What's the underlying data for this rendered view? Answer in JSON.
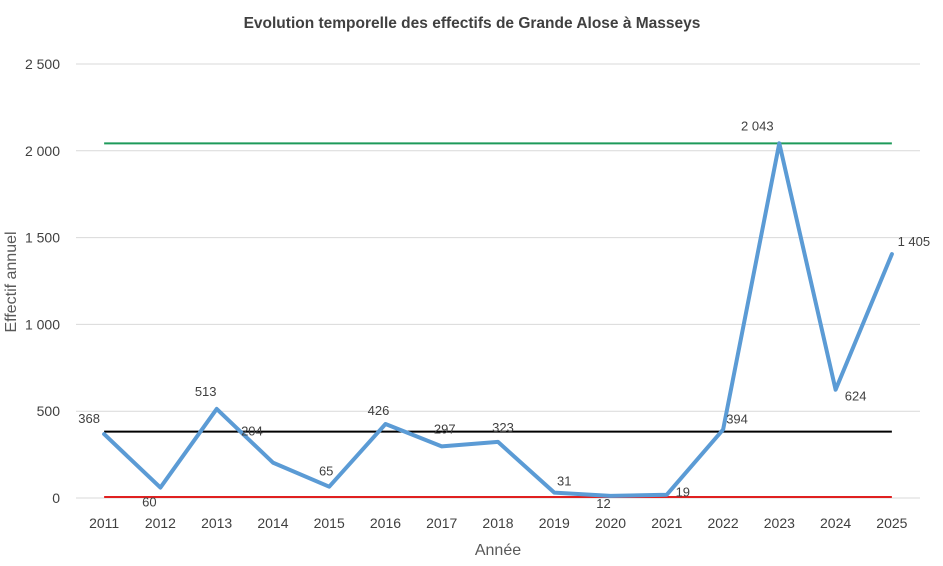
{
  "chart_data": {
    "type": "line",
    "title": "Evolution temporelle des effectifs de Grande Alose à Masseys",
    "xlabel": "Année",
    "ylabel": "Effectif annuel",
    "categories": [
      "2011",
      "2012",
      "2013",
      "2014",
      "2015",
      "2016",
      "2017",
      "2018",
      "2019",
      "2020",
      "2021",
      "2022",
      "2023",
      "2024",
      "2025"
    ],
    "series": [
      {
        "values": [
          368,
          60,
          513,
          204,
          65,
          426,
          297,
          323,
          31,
          12,
          19,
          394,
          2043,
          624,
          1405
        ],
        "labels": [
          "368",
          "60",
          "513",
          "204",
          "65",
          "426",
          "297",
          "323",
          "31",
          "12",
          "19",
          "394",
          "2 043",
          "624",
          "1 405"
        ],
        "color": "#5b9bd5"
      }
    ],
    "reference_lines": [
      {
        "value": 2043,
        "color": "#1e9a5a"
      },
      {
        "value": 382,
        "color": "#000000"
      },
      {
        "value": 6,
        "color": "#e02020"
      }
    ],
    "ylim": [
      0,
      2500
    ],
    "yticks": [
      0,
      500,
      1000,
      1500,
      2000,
      2500
    ],
    "ytick_labels": [
      "0",
      "500",
      "1 000",
      "1 500",
      "2 000",
      "2 500"
    ],
    "grid": true,
    "legend": "none"
  }
}
